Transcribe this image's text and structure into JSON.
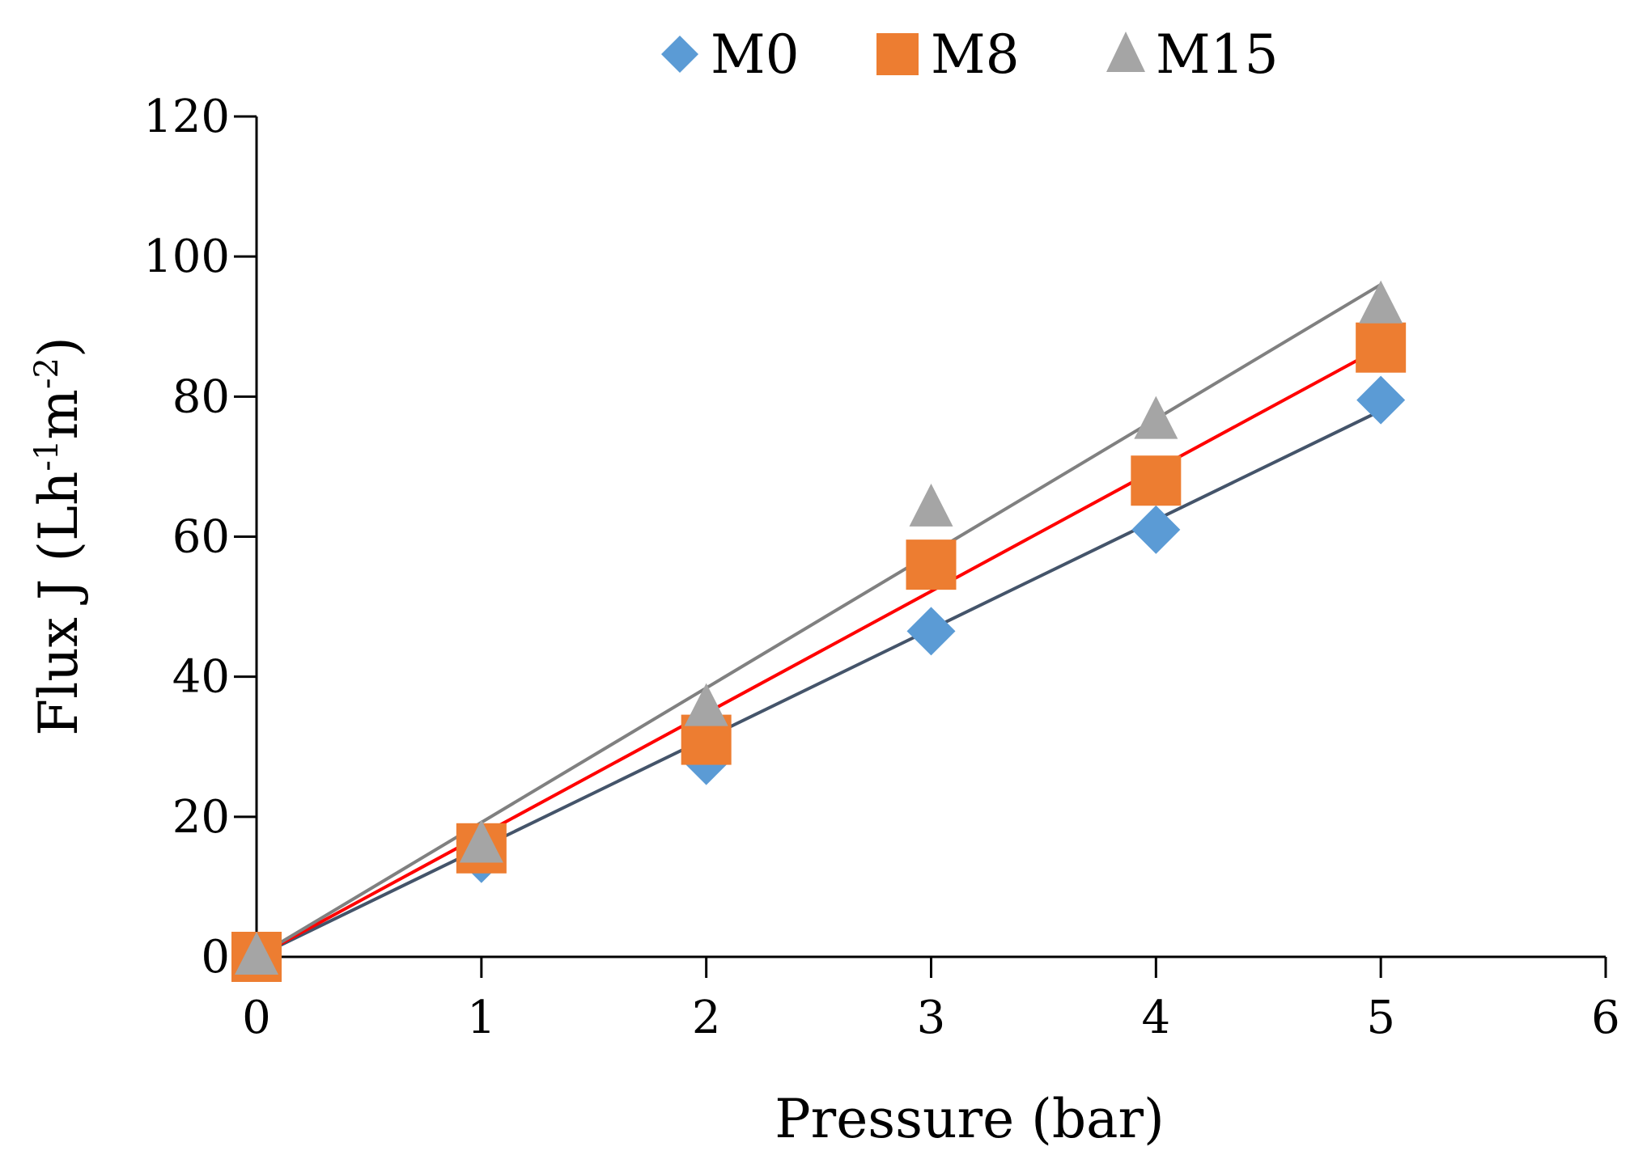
{
  "chart_data": {
    "type": "scatter",
    "title": "",
    "xlabel": "Pressure (bar)",
    "ylabel": {
      "prefix": "Flux J (Lh",
      "sup1": "-1",
      "mid": "m",
      "sup2": "-2",
      "suffix": ")"
    },
    "xlim": [
      0,
      6
    ],
    "ylim": [
      0,
      120
    ],
    "xticks": [
      0,
      1,
      2,
      3,
      4,
      5,
      6
    ],
    "yticks": [
      0,
      20,
      40,
      60,
      80,
      100,
      120
    ],
    "grid": false,
    "legend_position": "top-center",
    "series": [
      {
        "name": "M0",
        "marker": "diamond",
        "color": "#5b9bd5",
        "x": [
          0,
          1,
          2,
          3,
          4,
          5
        ],
        "y": [
          0,
          14,
          28,
          46.5,
          61,
          79.5
        ],
        "trendline": {
          "x": [
            0,
            5
          ],
          "y": [
            0,
            78
          ],
          "color": "#44546a"
        }
      },
      {
        "name": "M8",
        "marker": "square",
        "color": "#ed7d31",
        "x": [
          0,
          1,
          2,
          3,
          4,
          5
        ],
        "y": [
          0,
          15.5,
          31,
          56,
          68,
          87
        ],
        "trendline": {
          "x": [
            0,
            5
          ],
          "y": [
            0,
            87
          ],
          "color": "#ff0000"
        }
      },
      {
        "name": "M15",
        "marker": "triangle",
        "color": "#a5a5a5",
        "x": [
          0,
          1,
          2,
          3,
          4,
          5
        ],
        "y": [
          0,
          16,
          35.5,
          64,
          76.5,
          93
        ],
        "trendline": {
          "x": [
            0,
            5
          ],
          "y": [
            0,
            96
          ],
          "color": "#808080"
        }
      }
    ]
  }
}
